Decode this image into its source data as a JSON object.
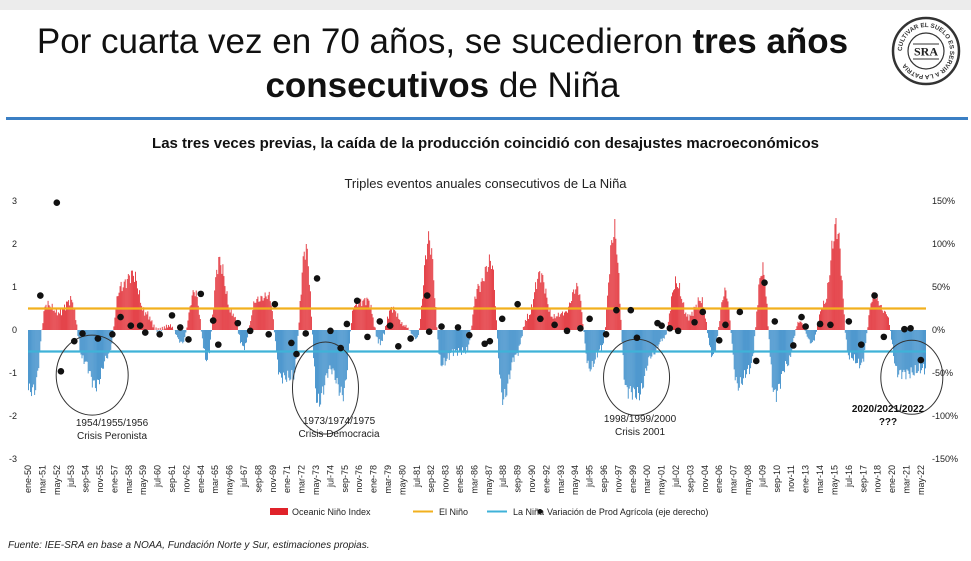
{
  "header": {
    "title_part1": "Por cuarta vez en 70 años, se sucedieron ",
    "title_bold1": "tres años",
    "title_bold2": "consecutivos",
    "title_part2": " de Niña",
    "logo_text": "SRA",
    "logo_ring_text": "CULTIVAR EL SUELO ES SERVIR A LA PATRIA"
  },
  "subtitle": "Las tres veces previas, la caída de la producción coincidió con desajustes macroeconómicos",
  "source": "Fuente: IEE-SRA en base a NOAA, Fundación Norte y Sur, estimaciones propias.",
  "colors": {
    "nino": "#e0222a",
    "nina": "#2f86c6",
    "elnino_line": "#f2b01e",
    "lanina_line": "#3fb2d8",
    "accent_rule": "#3b7fc4"
  },
  "chart_data": {
    "type": "bar",
    "title": "Triples eventos anuales consecutivos de La Niña",
    "left_axis": {
      "ticks": [
        "3",
        "2",
        "1",
        "0",
        "-1",
        "-2",
        "-3"
      ],
      "ylim": [
        -3,
        3
      ]
    },
    "right_axis": {
      "ticks": [
        "150%",
        "100%",
        "50%",
        "0%",
        "-50%",
        "-100%",
        "-150%"
      ],
      "ylim": [
        -150,
        150
      ]
    },
    "x_tick_labels": [
      "ene-50",
      "mar-51",
      "may-52",
      "jul-53",
      "sep-54",
      "nov-55",
      "ene-57",
      "mar-58",
      "may-59",
      "jul-60",
      "sep-61",
      "nov-62",
      "ene-64",
      "mar-65",
      "may-66",
      "jul-67",
      "sep-68",
      "nov-69",
      "ene-71",
      "mar-72",
      "may-73",
      "jul-74",
      "sep-75",
      "nov-76",
      "ene-78",
      "mar-79",
      "may-80",
      "jul-81",
      "sep-82",
      "nov-83",
      "ene-85",
      "mar-86",
      "may-87",
      "jul-88",
      "sep-89",
      "nov-90",
      "ene-92",
      "mar-93",
      "may-94",
      "jul-95",
      "sep-96",
      "nov-97",
      "ene-99",
      "mar-00",
      "may-01",
      "jul-02",
      "sep-03",
      "nov-04",
      "ene-06",
      "mar-07",
      "may-08",
      "jul-09",
      "sep-10",
      "nov-11",
      "ene-13",
      "mar-14",
      "may-15",
      "jul-16",
      "sep-17",
      "nov-18",
      "ene-20",
      "mar-21",
      "may-22"
    ],
    "oni_anchors": {
      "years": [
        1950,
        1951,
        1952,
        1953,
        1954,
        1955,
        1956,
        1957,
        1958,
        1959,
        1960,
        1961,
        1962,
        1963,
        1964,
        1965,
        1966,
        1967,
        1968,
        1969,
        1970,
        1971,
        1972,
        1973,
        1974,
        1975,
        1976,
        1977,
        1978,
        1979,
        1980,
        1981,
        1982,
        1983,
        1984,
        1985,
        1986,
        1987,
        1988,
        1989,
        1990,
        1991,
        1992,
        1993,
        1994,
        1995,
        1996,
        1997,
        1998,
        1999,
        2000,
        2001,
        2002,
        2003,
        2004,
        2005,
        2006,
        2007,
        2008,
        2009,
        2010,
        2011,
        2012,
        2013,
        2014,
        2015,
        2016,
        2017,
        2018,
        2019,
        2020,
        2021,
        2022
      ],
      "mid": [
        -1.4,
        0.6,
        0.4,
        0.7,
        -0.7,
        -1.3,
        -0.6,
        1.0,
        1.3,
        0.4,
        0.0,
        0.1,
        -0.3,
        0.9,
        -0.7,
        1.6,
        0.4,
        -0.4,
        0.7,
        0.8,
        -1.1,
        -1.1,
        1.9,
        -1.7,
        -0.9,
        -1.5,
        0.6,
        0.7,
        -0.3,
        0.5,
        0.1,
        -0.2,
        2.1,
        -0.8,
        -0.5,
        -0.5,
        1.0,
        1.6,
        -1.6,
        -0.6,
        0.3,
        1.3,
        0.3,
        0.4,
        1.0,
        -0.9,
        -0.4,
        2.3,
        -1.4,
        -1.5,
        -0.6,
        -0.2,
        1.1,
        0.3,
        0.7,
        -0.6,
        0.9,
        -1.3,
        -0.9,
        1.4,
        -1.5,
        -0.8,
        0.2,
        -0.3,
        0.6,
        2.4,
        -0.6,
        -0.8,
        0.8,
        0.4,
        -1.0,
        -1.0,
        -0.9
      ]
    },
    "reference_lines": [
      {
        "name": "El Niño",
        "value": 0.5
      },
      {
        "name": "La Niña",
        "value": -0.5
      }
    ],
    "series": [
      {
        "name": "Oceanic Niño Index",
        "type": "bar"
      },
      {
        "name": "Variación de Prod Agrícola (eje derecho)",
        "type": "scatter",
        "points": [
          {
            "x": "ene-51",
            "y": 40
          },
          {
            "x": "may-52",
            "y": 148
          },
          {
            "x": "sep-52",
            "y": -48
          },
          {
            "x": "oct-53",
            "y": -13
          },
          {
            "x": "jun-54",
            "y": -4
          },
          {
            "x": "sep-55",
            "y": -10
          },
          {
            "x": "nov-56",
            "y": -5
          },
          {
            "x": "jul-57",
            "y": 15
          },
          {
            "x": "may-58",
            "y": 5
          },
          {
            "x": "feb-59",
            "y": 5
          },
          {
            "x": "jul-59",
            "y": -3
          },
          {
            "x": "sep-60",
            "y": -5
          },
          {
            "x": "sep-61",
            "y": 17
          },
          {
            "x": "may-62",
            "y": 3
          },
          {
            "x": "ene-63",
            "y": -11
          },
          {
            "x": "ene-64",
            "y": 42
          },
          {
            "x": "ene-65",
            "y": 11
          },
          {
            "x": "jun-65",
            "y": -17
          },
          {
            "x": "ene-67",
            "y": 8
          },
          {
            "x": "ene-68",
            "y": -1
          },
          {
            "x": "jul-69",
            "y": -5
          },
          {
            "x": "ene-70",
            "y": 30
          },
          {
            "x": "may-71",
            "y": -15
          },
          {
            "x": "oct-71",
            "y": -28
          },
          {
            "x": "jul-72",
            "y": -4
          },
          {
            "x": "jun-73",
            "y": 60
          },
          {
            "x": "jul-74",
            "y": -1
          },
          {
            "x": "may-75",
            "y": -21
          },
          {
            "x": "nov-75",
            "y": 7
          },
          {
            "x": "sep-76",
            "y": 34
          },
          {
            "x": "jul-77",
            "y": -8
          },
          {
            "x": "jul-78",
            "y": 10
          },
          {
            "x": "may-79",
            "y": 5
          },
          {
            "x": "ene-80",
            "y": -19
          },
          {
            "x": "ene-81",
            "y": -10
          },
          {
            "x": "may-82",
            "y": 40
          },
          {
            "x": "jul-82",
            "y": -2
          },
          {
            "x": "jul-83",
            "y": 4
          },
          {
            "x": "nov-84",
            "y": 3
          },
          {
            "x": "oct-85",
            "y": -6
          },
          {
            "x": "ene-87",
            "y": -16
          },
          {
            "x": "jun-87",
            "y": -13
          },
          {
            "x": "jun-88",
            "y": 13
          },
          {
            "x": "sep-89",
            "y": 30
          },
          {
            "x": "jul-91",
            "y": 13
          },
          {
            "x": "sep-92",
            "y": 6
          },
          {
            "x": "sep-93",
            "y": -1
          },
          {
            "x": "oct-94",
            "y": 2
          },
          {
            "x": "jul-95",
            "y": 13
          },
          {
            "x": "nov-96",
            "y": -5
          },
          {
            "x": "sep-97",
            "y": 23
          },
          {
            "x": "nov-98",
            "y": 23
          },
          {
            "x": "may-99",
            "y": -9
          },
          {
            "x": "ene-01",
            "y": 8
          },
          {
            "x": "may-01",
            "y": 5
          },
          {
            "x": "ene-02",
            "y": 2
          },
          {
            "x": "sep-02",
            "y": -1
          },
          {
            "x": "ene-04",
            "y": 9
          },
          {
            "x": "sep-04",
            "y": 21
          },
          {
            "x": "ene-06",
            "y": -12
          },
          {
            "x": "jul-06",
            "y": 6
          },
          {
            "x": "sep-07",
            "y": 21
          },
          {
            "x": "ene-09",
            "y": -36
          },
          {
            "x": "sep-09",
            "y": 55
          },
          {
            "x": "jul-10",
            "y": 10
          },
          {
            "x": "ene-12",
            "y": -18
          },
          {
            "x": "sep-12",
            "y": 15
          },
          {
            "x": "ene-13",
            "y": 4
          },
          {
            "x": "mar-14",
            "y": 7
          },
          {
            "x": "ene-15",
            "y": 6
          },
          {
            "x": "jul-16",
            "y": 10
          },
          {
            "x": "jul-17",
            "y": -17
          },
          {
            "x": "ago-18",
            "y": 40
          },
          {
            "x": "may-19",
            "y": -8
          },
          {
            "x": "ene-21",
            "y": 1
          },
          {
            "x": "jul-21",
            "y": 2
          },
          {
            "x": "may-22",
            "y": -35
          }
        ]
      }
    ],
    "annotations": [
      {
        "lines": [
          "1954/1955/1956",
          "Crisis Peronista"
        ]
      },
      {
        "lines": [
          "1973/1974/1975",
          "Crisis Democracia"
        ]
      },
      {
        "lines": [
          "1998/1999/2000",
          "Crisis 2001"
        ]
      },
      {
        "lines": [
          "2020/2021/2022",
          "???"
        ]
      }
    ],
    "legend": [
      {
        "label": "Oceanic Niño Index",
        "kind": "bar"
      },
      {
        "label": "El Niño",
        "kind": "line-yellow"
      },
      {
        "label": "La Niña",
        "kind": "line-blue"
      },
      {
        "label": "Variación de Prod Agrícola (eje derecho)",
        "kind": "dot"
      }
    ],
    "grid": false,
    "legend_position": "bottom"
  }
}
